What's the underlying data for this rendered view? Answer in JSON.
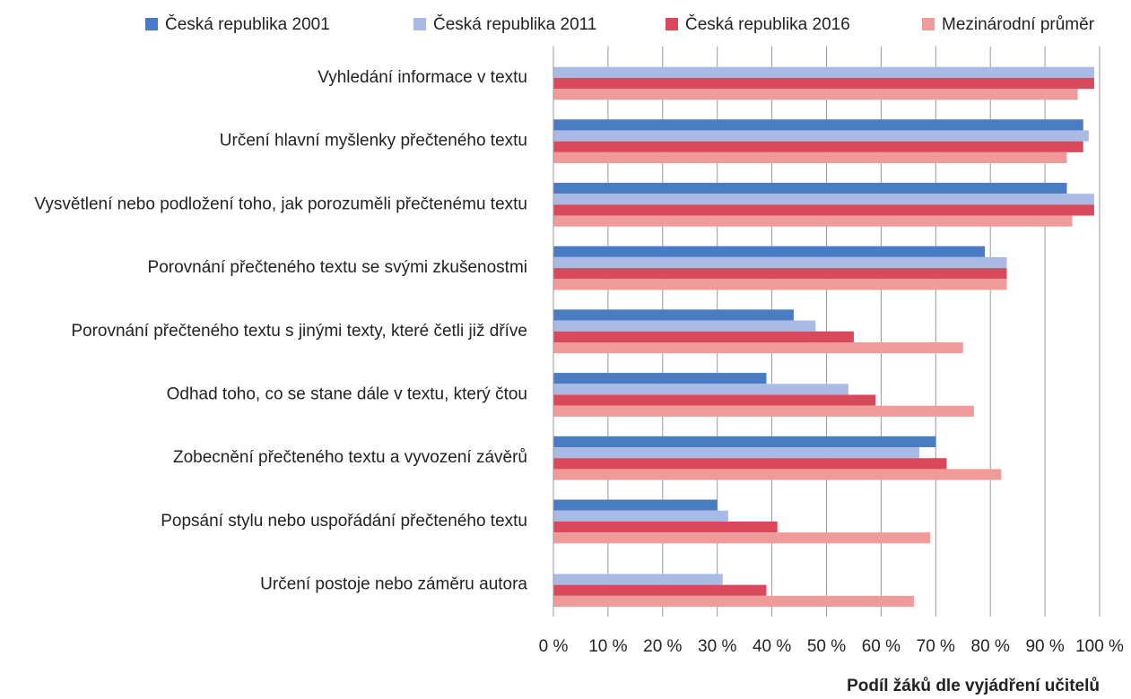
{
  "chart_data": {
    "type": "hbar",
    "x_label": "Podíl žáků dle vyjádření učitelů",
    "categories": [
      "Vyhledání informace v textu",
      "Určení hlavní myšlenky přečteného textu",
      "Vysvětlení nebo podložení toho, jak porozuměli přečtenému textu",
      "Porovnání přečteného textu se svými zkušenostmi",
      "Porovnání přečteného textu s jinými texty, které četli již dříve",
      "Odhad toho, co se stane dále v textu, který čtou",
      "Zobecnění přečteného textu a vyvození závěrů",
      "Popsání stylu nebo uspořádání přečteného textu",
      "Určení postoje nebo záměru autora"
    ],
    "series": [
      {
        "name": "Česká republika 2001",
        "color": "#4a7cc4",
        "values": [
          null,
          97,
          94,
          79,
          44,
          39,
          70,
          30,
          null
        ]
      },
      {
        "name": "Česká republika 2011",
        "color": "#a9bbe4",
        "values": [
          99,
          98,
          99,
          83,
          48,
          54,
          67,
          32,
          31
        ]
      },
      {
        "name": "Česká republika 2016",
        "color": "#d9495b",
        "values": [
          99,
          97,
          99,
          83,
          55,
          59,
          72,
          41,
          39
        ]
      },
      {
        "name": "Mezinárodní průměr",
        "color": "#f09b9a",
        "values": [
          96,
          94,
          95,
          83,
          75,
          77,
          82,
          69,
          66
        ]
      }
    ],
    "xlim": [
      0,
      100
    ],
    "xticks": [
      {
        "value": 0,
        "label": "0 %"
      },
      {
        "value": 10,
        "label": "10 %"
      },
      {
        "value": 20,
        "label": "20 %"
      },
      {
        "value": 30,
        "label": "30 %"
      },
      {
        "value": 40,
        "label": "40 %"
      },
      {
        "value": 50,
        "label": "50 %"
      },
      {
        "value": 60,
        "label": "60 %"
      },
      {
        "value": 70,
        "label": "70 %"
      },
      {
        "value": 80,
        "label": "80 %"
      },
      {
        "value": 90,
        "label": "90 %"
      },
      {
        "value": 100,
        "label": "100 %"
      }
    ],
    "grid": true
  }
}
